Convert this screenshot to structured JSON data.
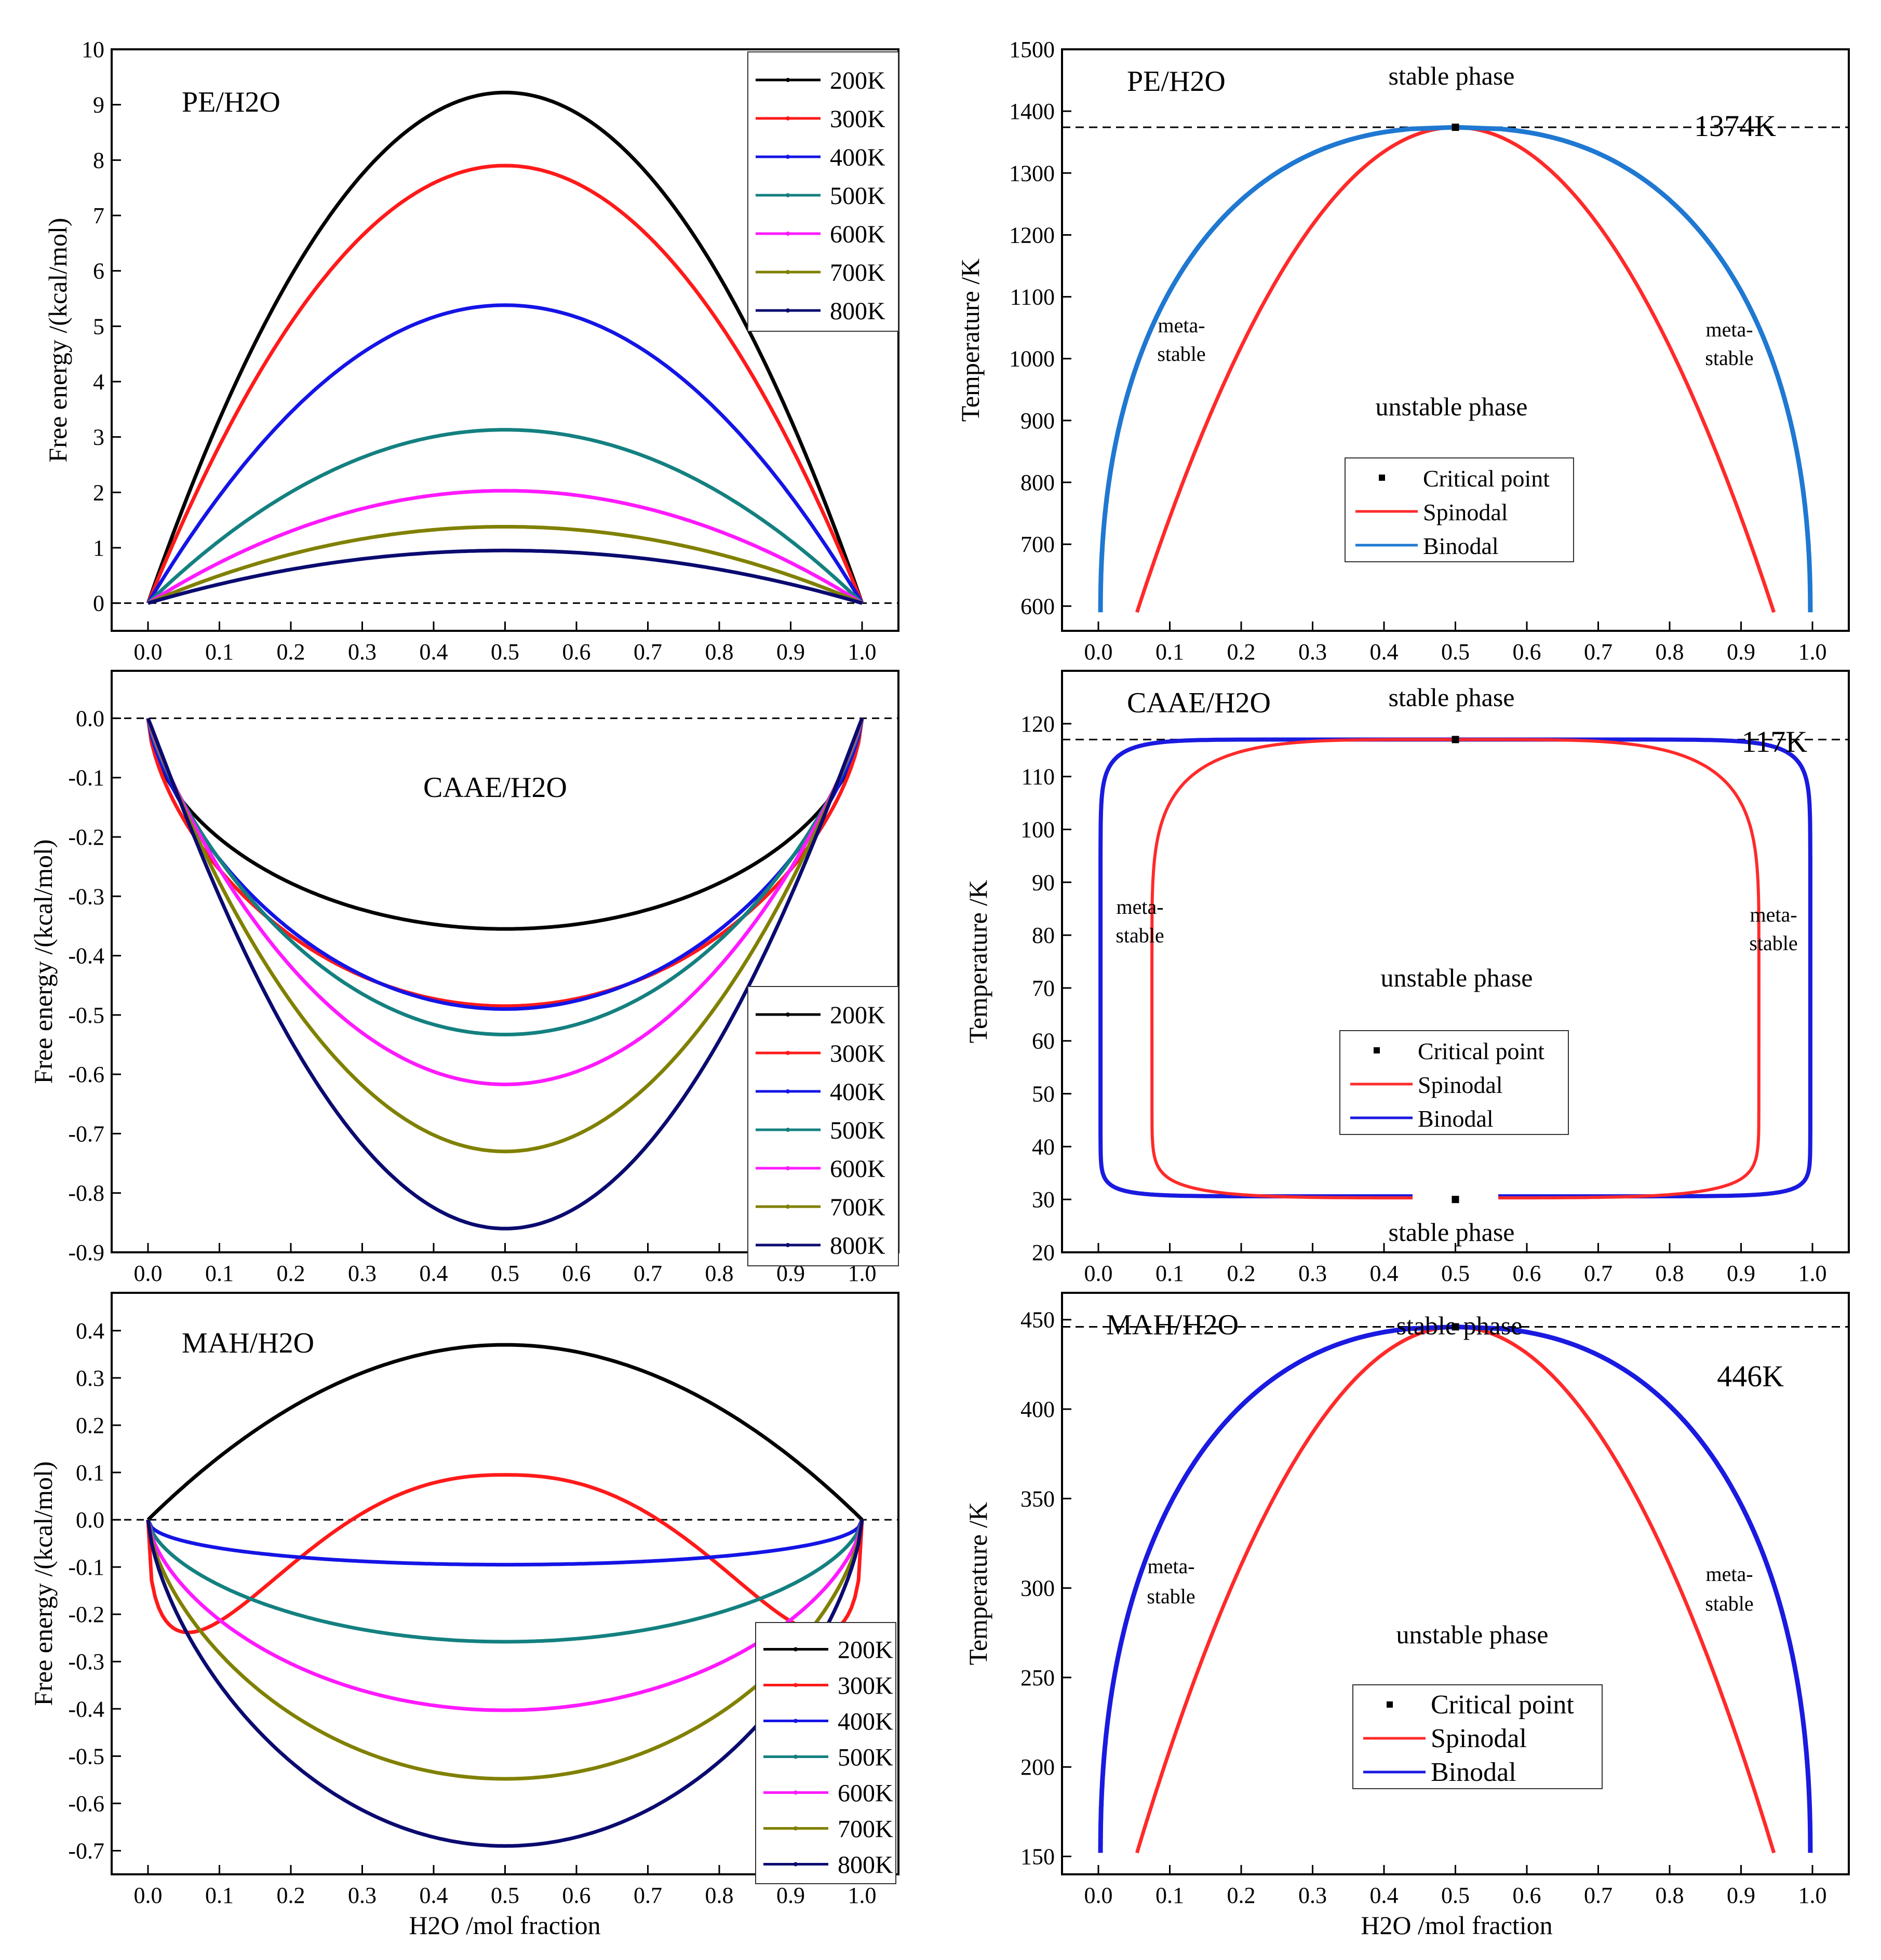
{
  "colors": {
    "t200": "#000000",
    "t300": "#ff1a1a",
    "t400": "#1414e6",
    "t500": "#148080",
    "t600": "#ff1aff",
    "t700": "#808000",
    "t800": "#0a0a70",
    "spinodal": "#ff2a2a",
    "binodal_pe": "#1f78d1",
    "binodal": "#1a1ae0"
  },
  "legend_temps": [
    "200K",
    "300K",
    "400K",
    "500K",
    "600K",
    "700K",
    "800K"
  ],
  "phase_labels": {
    "stable": "stable phase",
    "unstable": "unstable phase",
    "meta1": "meta-",
    "meta2": "stable"
  },
  "phase_legend": [
    "Critical point",
    "Spinodal",
    "Binodal"
  ],
  "chart_data": [
    {
      "type": "line",
      "title": "PE/H2O",
      "xlabel": "H2O /mol fraction",
      "ylabel": "Free energy /(kcal/mol)",
      "xlim": [
        0,
        1
      ],
      "ylim": [
        -0.5,
        10
      ],
      "xticks": [
        "0.0",
        "0.1",
        "0.2",
        "0.3",
        "0.4",
        "0.5",
        "0.6",
        "0.7",
        "0.8",
        "0.9",
        "1.0"
      ],
      "yticks": [
        "0",
        "1",
        "2",
        "3",
        "4",
        "5",
        "6",
        "7",
        "8",
        "9",
        "10"
      ],
      "series": [
        {
          "name": "200K",
          "peak": 9.22
        },
        {
          "name": "300K",
          "peak": 7.9
        },
        {
          "name": "400K",
          "peak": 5.38
        },
        {
          "name": "500K",
          "peak": 3.13
        },
        {
          "name": "600K",
          "peak": 2.03
        },
        {
          "name": "700K",
          "peak": 1.38
        },
        {
          "name": "800K",
          "peak": 0.95
        }
      ]
    },
    {
      "type": "phase_diagram",
      "title": "PE/H2O",
      "xlabel": "H2O /mol fraction",
      "ylabel": "Temperature /K",
      "xlim": [
        0,
        1
      ],
      "ylim": [
        560,
        1500
      ],
      "yticks": [
        "600",
        "700",
        "800",
        "900",
        "1000",
        "1100",
        "1200",
        "1300",
        "1400",
        "1500"
      ],
      "critical_label": "1374K",
      "critical_point": {
        "x": 0.5,
        "T": 1374
      },
      "spinodal_bottom": {
        "x": 0.054,
        "T": 590
      },
      "binodal_bottom": {
        "x": 0.003,
        "T": 590
      }
    },
    {
      "type": "line",
      "title": "CAAE/H2O",
      "xlabel": "H2O /mol fraction",
      "ylabel": "Free energy /(kcal/mol)",
      "xlim": [
        0,
        1
      ],
      "ylim": [
        -0.9,
        0.08
      ],
      "yticks": [
        "0.0",
        "-0.1",
        "-0.2",
        "-0.3",
        "-0.4",
        "-0.5",
        "-0.6",
        "-0.7",
        "-0.8",
        "-0.9"
      ],
      "series": [
        {
          "name": "200K",
          "peak": -0.355
        },
        {
          "name": "300K",
          "peak": -0.485
        },
        {
          "name": "400K",
          "peak": -0.49
        },
        {
          "name": "500K",
          "peak": -0.533
        },
        {
          "name": "600K",
          "peak": -0.617
        },
        {
          "name": "700K",
          "peak": -0.73
        },
        {
          "name": "800K",
          "peak": -0.86
        }
      ]
    },
    {
      "type": "phase_diagram",
      "title": "CAAE/H2O",
      "xlabel": "H2O /mol fraction",
      "ylabel": "Temperature /K",
      "xlim": [
        0,
        1
      ],
      "ylim": [
        20,
        130
      ],
      "yticks": [
        "20",
        "30",
        "40",
        "50",
        "60",
        "70",
        "80",
        "90",
        "100",
        "110",
        "120"
      ],
      "critical_label": "117K",
      "upper_critical_point": {
        "x": 0.5,
        "T": 117
      },
      "lower_critical_point": {
        "x": 0.5,
        "T": 30
      }
    },
    {
      "type": "line",
      "title": "MAH/H2O",
      "xlabel": "H2O /mol fraction",
      "ylabel": "Free energy /(kcal/mol)",
      "xlim": [
        0,
        1
      ],
      "ylim": [
        -0.75,
        0.48
      ],
      "yticks": [
        "0.4",
        "0.3",
        "0.2",
        "0.1",
        "0.0",
        "-0.1",
        "-0.2",
        "-0.3",
        "-0.4",
        "-0.5",
        "-0.6",
        "-0.7"
      ],
      "series": [
        {
          "name": "200K",
          "peak": 0.37
        },
        {
          "name": "300K",
          "peak": 0.095
        },
        {
          "name": "400K",
          "peak": -0.095
        },
        {
          "name": "500K",
          "peak": -0.258
        },
        {
          "name": "600K",
          "peak": -0.403
        },
        {
          "name": "700K",
          "peak": -0.548
        },
        {
          "name": "800K",
          "peak": -0.69
        }
      ]
    },
    {
      "type": "phase_diagram",
      "title": "MAH/H2O",
      "xlabel": "H2O /mol fraction",
      "ylabel": "Temperature /K",
      "xlim": [
        0,
        1
      ],
      "ylim": [
        140,
        465
      ],
      "yticks": [
        "150",
        "200",
        "250",
        "300",
        "350",
        "400",
        "450"
      ],
      "critical_label": "446K",
      "critical_point": {
        "x": 0.5,
        "T": 446
      },
      "spinodal_bottom": {
        "x": 0.054,
        "T": 152
      },
      "binodal_bottom": {
        "x": 0.003,
        "T": 152
      }
    }
  ]
}
